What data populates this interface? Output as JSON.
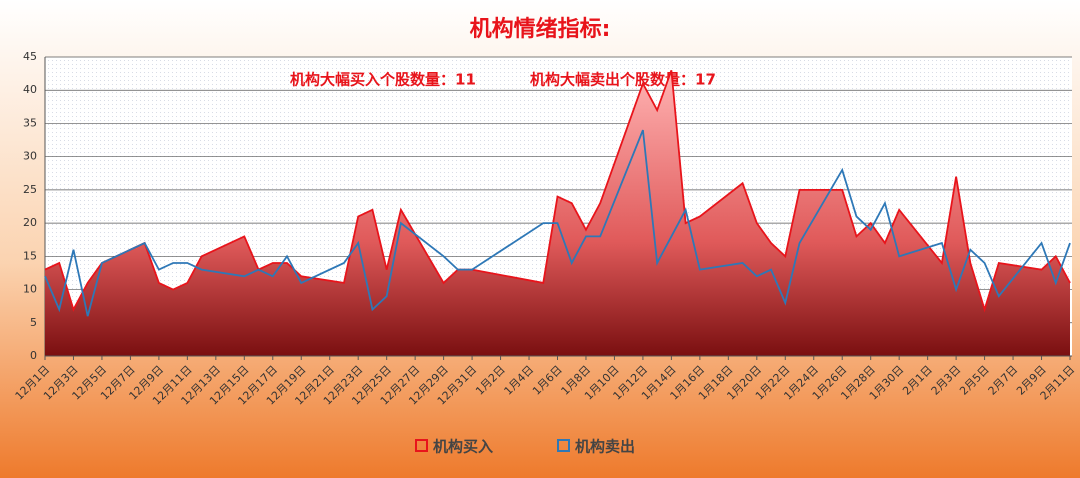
{
  "chart_data": {
    "type": "area-line",
    "title": "机构情绪指标:",
    "annotations": [
      "机构大幅买入个股数量：11",
      "机构大幅卖出个股数量：17"
    ],
    "x": [
      "12月1日",
      "12月2日",
      "12月3日",
      "12月4日",
      "12月5日",
      "12月8日",
      "12月9日",
      "12月10日",
      "12月11日",
      "12月12日",
      "12月15日",
      "12月16日",
      "12月17日",
      "12月18日",
      "12月19日",
      "12月22日",
      "12月23日",
      "12月24日",
      "12月25日",
      "12月26日",
      "12月29日",
      "12月30日",
      "12月31日",
      "1月5日",
      "1月6日",
      "1月7日",
      "1月8日",
      "1月9日",
      "1月12日",
      "1月13日",
      "1月14日",
      "1月15日",
      "1月16日",
      "1月19日",
      "1月20日",
      "1月21日",
      "1月22日",
      "1月23日",
      "1月26日",
      "1月27日",
      "1月28日",
      "1月29日",
      "1月30日",
      "2月2日",
      "2月3日",
      "2月4日",
      "2月5日",
      "2月6日",
      "2月9日",
      "2月10日",
      "2月11日"
    ],
    "series": [
      {
        "name": "机构买入",
        "color": "#e8141b",
        "values": [
          13,
          14,
          7,
          11,
          14,
          17,
          11,
          10,
          11,
          15,
          18,
          13,
          14,
          14,
          12,
          11,
          21,
          22,
          13,
          22,
          11,
          13,
          13,
          11,
          24,
          23,
          19,
          23,
          41,
          37,
          43,
          20,
          21,
          26,
          20,
          17,
          15,
          25,
          25,
          18,
          20,
          17,
          22,
          14,
          27,
          14,
          7,
          14,
          13,
          15,
          11
        ]
      },
      {
        "name": "机构卖出",
        "color": "#2e78b7",
        "values": [
          12,
          7,
          16,
          6,
          14,
          17,
          13,
          14,
          14,
          13,
          12,
          13,
          12,
          15,
          11,
          14,
          17,
          7,
          9,
          20,
          15,
          13,
          13,
          20,
          20,
          14,
          18,
          18,
          34,
          14,
          18,
          22,
          13,
          14,
          12,
          13,
          8,
          17,
          28,
          21,
          19,
          23,
          15,
          17,
          10,
          16,
          14,
          9,
          17,
          11,
          17
        ]
      }
    ],
    "xlim": [
      "12月1日",
      "2月11日"
    ],
    "xticks": [
      "12月1日",
      "12月3日",
      "12月5日",
      "12月7日",
      "12月9日",
      "12月11日",
      "12月13日",
      "12月15日",
      "12月17日",
      "12月19日",
      "12月21日",
      "12月23日",
      "12月25日",
      "12月27日",
      "12月29日",
      "12月31日",
      "1月2日",
      "1月4日",
      "1月6日",
      "1月8日",
      "1月10日",
      "1月12日",
      "1月14日",
      "1月16日",
      "1月18日",
      "1月20日",
      "1月22日",
      "1月24日",
      "1月26日",
      "1月28日",
      "1月30日",
      "2月1日",
      "2月3日",
      "2月5日",
      "2月7日",
      "2月9日",
      "2月11日"
    ],
    "ylim": [
      0,
      45
    ],
    "yticks": [
      0,
      5,
      10,
      15,
      20,
      25,
      30,
      35,
      40,
      45
    ],
    "grid": true
  }
}
